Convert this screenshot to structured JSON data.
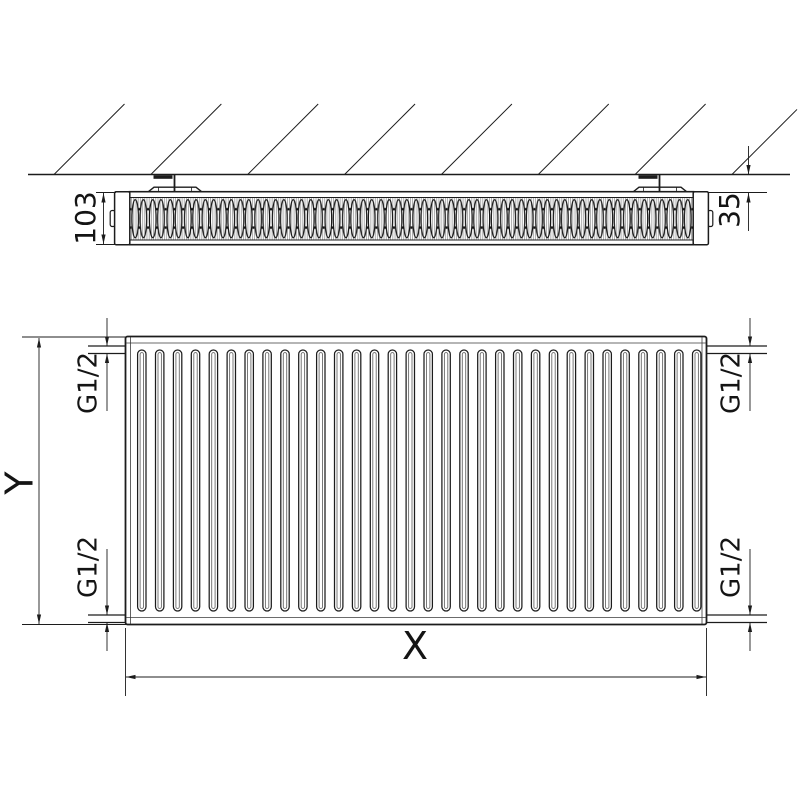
{
  "title": "Panel radiator technical drawing",
  "labels": {
    "depth": "103",
    "wall_distance": "35",
    "height": "Y",
    "width": "X",
    "conn_top_left": "G1/2",
    "conn_bottom_left": "G1/2",
    "conn_top_right": "G1/2",
    "conn_bottom_right": "G1/2"
  },
  "colors": {
    "line": "#1c1c1c",
    "thin_line": "#3a3a3a",
    "background": "#ffffff"
  },
  "geometry": {
    "hatch_count": 8,
    "corrugation_count": 32,
    "bracket_centers": [
      175,
      660
    ]
  }
}
